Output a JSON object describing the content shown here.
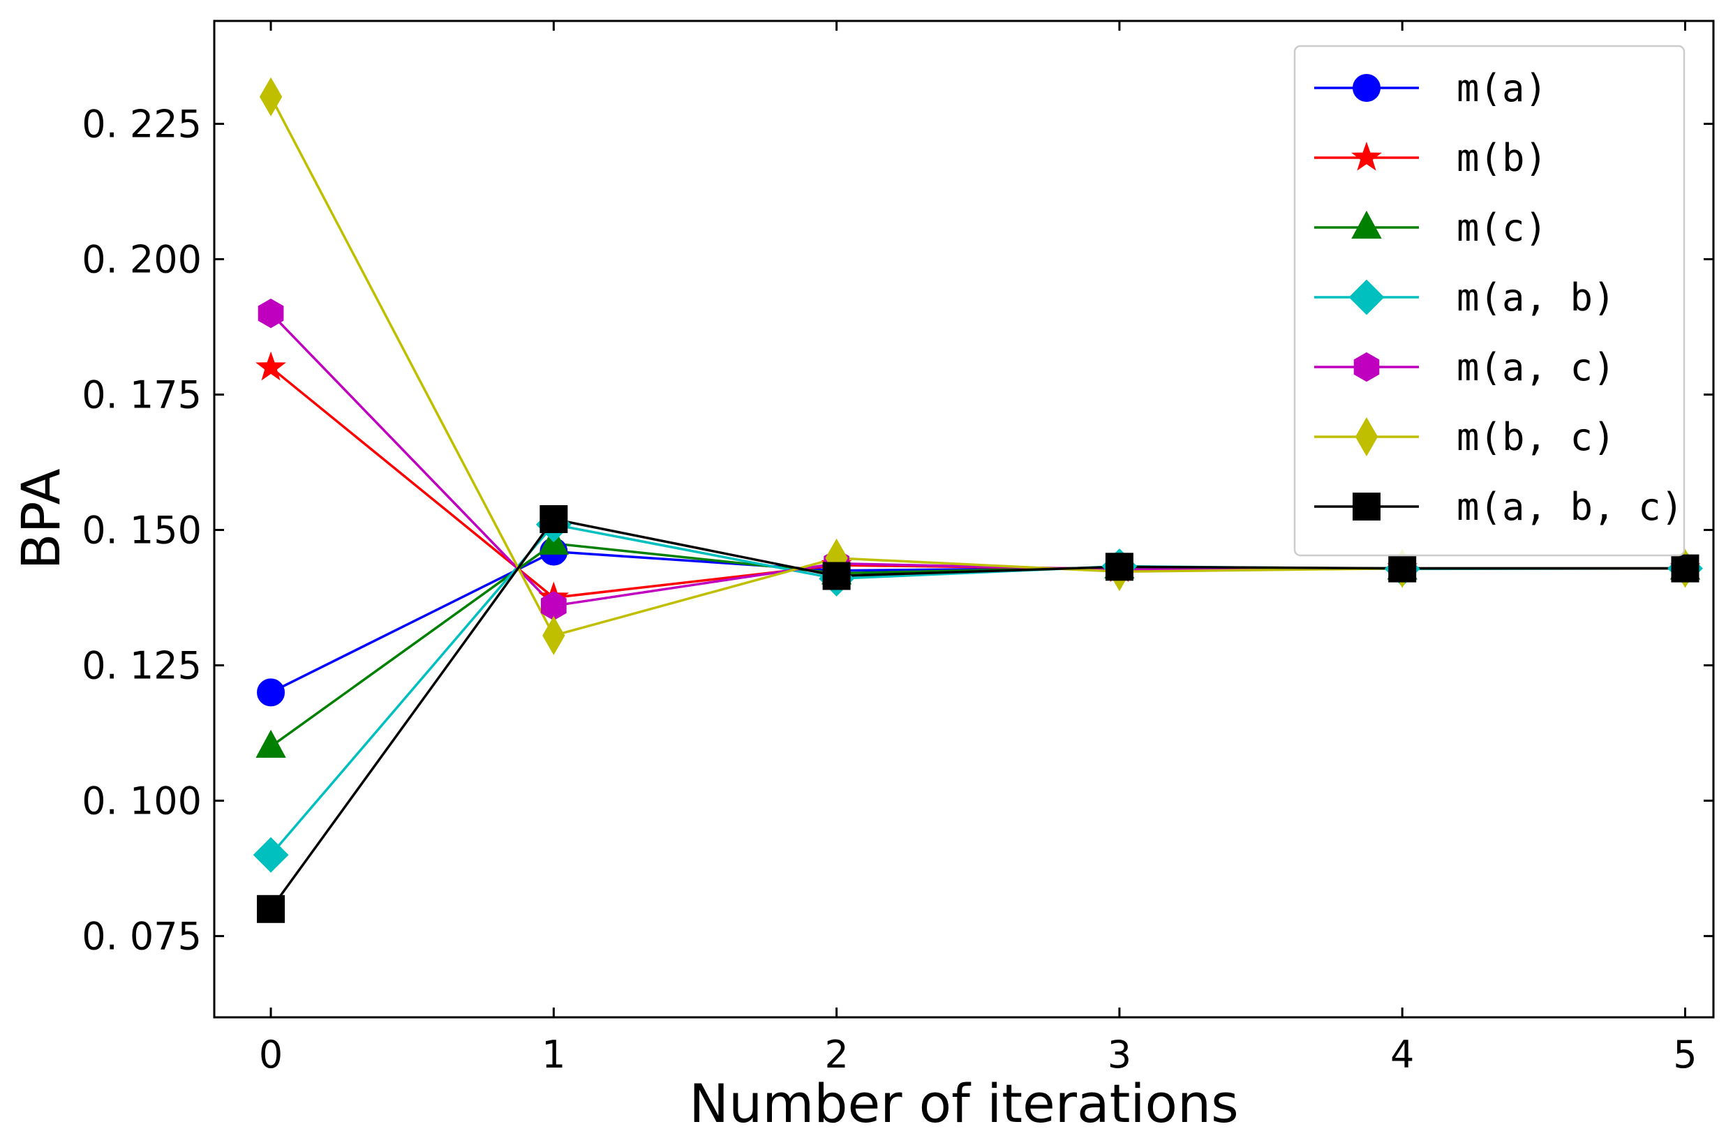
{
  "chart_data": {
    "type": "line",
    "title": "",
    "xlabel": "Number of iterations",
    "ylabel": "BPA",
    "xlim": [
      -0.2,
      5.1
    ],
    "ylim": [
      0.06,
      0.244
    ],
    "x": [
      0,
      1,
      2,
      3,
      4,
      5
    ],
    "x_ticks": [
      0,
      1,
      2,
      3,
      4,
      5
    ],
    "x_tick_labels": [
      "0",
      "1",
      "2",
      "3",
      "4",
      "5"
    ],
    "y_ticks": [
      0.075,
      0.1,
      0.125,
      0.15,
      0.175,
      0.2,
      0.225
    ],
    "y_tick_labels": [
      "0. 075",
      "0. 100",
      "0. 125",
      "0. 150",
      "0. 175",
      "0. 200",
      "0. 225"
    ],
    "grid": false,
    "legend_position": "top-right",
    "series": [
      {
        "name": "m(a)",
        "label": "m(a)",
        "color": "#0000ff",
        "marker": "circle",
        "values": [
          0.12,
          0.146,
          0.1425,
          0.143,
          0.1429,
          0.1429
        ]
      },
      {
        "name": "m(b)",
        "label": "m(b)",
        "color": "#ff0000",
        "marker": "star",
        "values": [
          0.18,
          0.1375,
          0.1435,
          0.1428,
          0.1429,
          0.1429
        ]
      },
      {
        "name": "m(c)",
        "label": "m(c)",
        "color": "#008000",
        "marker": "triangle",
        "values": [
          0.11,
          0.1475,
          0.142,
          0.1431,
          0.1429,
          0.1429
        ]
      },
      {
        "name": "m(a,b)",
        "label": "m(a, b)",
        "color": "#00bfbf",
        "marker": "diamond",
        "values": [
          0.09,
          0.151,
          0.141,
          0.1433,
          0.1428,
          0.1429
        ]
      },
      {
        "name": "m(a,c)",
        "label": "m(a, c)",
        "color": "#bf00bf",
        "marker": "hexagon",
        "values": [
          0.19,
          0.136,
          0.1438,
          0.1427,
          0.1429,
          0.1429
        ]
      },
      {
        "name": "m(b,c)",
        "label": "m(b, c)",
        "color": "#bfbf00",
        "marker": "thin_diamond",
        "values": [
          0.23,
          0.1305,
          0.1448,
          0.1423,
          0.1429,
          0.1429
        ]
      },
      {
        "name": "m(a,b,c)",
        "label": "m(a, b, c)",
        "color": "#000000",
        "marker": "square",
        "values": [
          0.08,
          0.152,
          0.1415,
          0.1432,
          0.1429,
          0.1429
        ]
      }
    ]
  }
}
